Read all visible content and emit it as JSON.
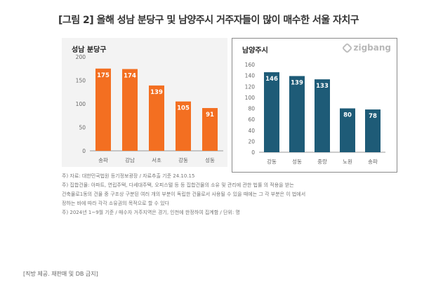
{
  "title_tag": "[그림 2]",
  "title_text": "올해 성남 분당구 및 남양주시 거주자들이 많이 매수한 서울 자치구",
  "logo_text": "zigbang",
  "notes": [
    "주) 자료: 대한민국법원 등기정보광장 / 자료추출 기준 24.10.15",
    "주) 집합건물: 아파트, 연립주택, 다세대주택, 오피스텔 등 등 집합건물의 소유 및 관리에 관한 법률 의 적용을 받는",
    "건축물로1동의 건물 중 구조상 구분된 여러 개의 부분이 독립한 건물로서 사용될 수 있을 때에는 그 각 부분은 이 법에서",
    "정하는 바에 따라 각각 소유권의 목적으로 할 수 있다",
    "주) 2024년 1~9월 기준 / 매수자 거주지역은 경기, 인천에 한정하여 집계함 / 단위: 명"
  ],
  "footer": "[직방 제공. 재판매 및 DB 금지]",
  "colors": {
    "left_bar": "#f36f21",
    "right_bar": "#1e5b77",
    "axis_text": "#666666"
  },
  "chart_data": [
    {
      "type": "bar",
      "title": "성남 분당구",
      "categories": [
        "송파",
        "강남",
        "서초",
        "강동",
        "성동"
      ],
      "values": [
        175,
        174,
        139,
        105,
        91
      ],
      "ylim": [
        0,
        200
      ],
      "yticks": [
        0,
        50,
        100,
        150,
        200
      ],
      "grid": false,
      "color": "#f36f21"
    },
    {
      "type": "bar",
      "title": "남양주시",
      "categories": [
        "강동",
        "성동",
        "중랑",
        "노원",
        "송파"
      ],
      "values": [
        146,
        139,
        133,
        80,
        78
      ],
      "ylim": [
        0,
        160
      ],
      "yticks": [
        0,
        20,
        40,
        60,
        80,
        100,
        120,
        140,
        160
      ],
      "grid": false,
      "color": "#1e5b77"
    }
  ]
}
